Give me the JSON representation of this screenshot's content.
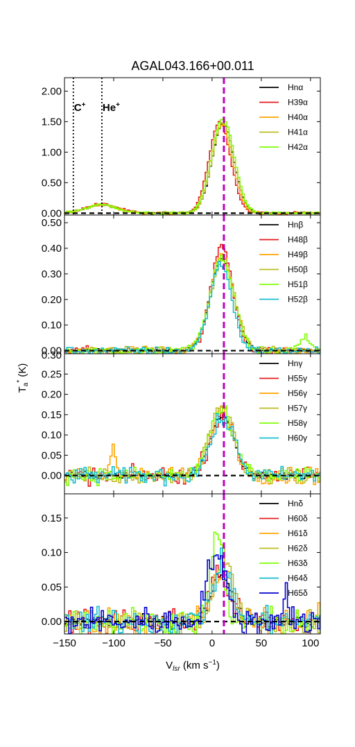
{
  "chart_data": {
    "type": "line",
    "title": "AGAL043.166+00.011",
    "xlabel": "V_lsr (km s^-1)",
    "ylabel": "T_a^* (K)",
    "xlim": [
      -150,
      110
    ],
    "x_ticks": [
      -150,
      -100,
      -50,
      0,
      50,
      100
    ],
    "x_tick_labels": [
      "−150",
      "−100",
      "−50",
      "0",
      "50",
      "100"
    ],
    "reference_lines": {
      "dashed_vertical_v": 12,
      "dashed_vertical_color": "#c000c0",
      "dotted_vertical_v": [
        -141,
        -112
      ],
      "annotations": [
        {
          "v": -141,
          "label": "C",
          "sup": "+"
        },
        {
          "v": -112,
          "label": "He",
          "sup": "+"
        }
      ]
    },
    "panels": [
      {
        "name": "alpha",
        "ylim": [
          -0.03,
          2.22
        ],
        "y_ticks": [
          0,
          0.5,
          1.0,
          1.5,
          2.0
        ],
        "y_tick_labels": [
          "0.00",
          "0.50",
          "1.00",
          "1.50",
          "2.00"
        ],
        "legend_position": "top-right",
        "series": [
          {
            "name": "Hnα",
            "color": "#000000",
            "peak_v": 11,
            "peak": 1.47,
            "sigma": 11,
            "noise": 0.012,
            "extra": [
              {
                "v": -112,
                "a": 0.14,
                "s": 16
              }
            ]
          },
          {
            "name": "H39α",
            "color": "#e41a1c",
            "peak_v": 8,
            "peak": 1.5,
            "sigma": 11,
            "noise": 0.02,
            "extra": [
              {
                "v": -112,
                "a": 0.15,
                "s": 16
              }
            ]
          },
          {
            "name": "H40α",
            "color": "#ffa500",
            "peak_v": 10,
            "peak": 1.45,
            "sigma": 11,
            "noise": 0.02,
            "extra": [
              {
                "v": -112,
                "a": 0.14,
                "s": 16
              }
            ]
          },
          {
            "name": "H41α",
            "color": "#bcbd22",
            "peak_v": 11,
            "peak": 1.48,
            "sigma": 11,
            "noise": 0.02,
            "extra": [
              {
                "v": -112,
                "a": 0.13,
                "s": 16
              }
            ]
          },
          {
            "name": "H42α",
            "color": "#7fff00",
            "peak_v": 11,
            "peak": 1.55,
            "sigma": 11.5,
            "noise": 0.02,
            "extra": [
              {
                "v": -112,
                "a": 0.14,
                "s": 16
              }
            ]
          }
        ]
      },
      {
        "name": "beta",
        "ylim": [
          -0.012,
          0.53
        ],
        "y_ticks": [
          0,
          0.1,
          0.2,
          0.3,
          0.4,
          0.5
        ],
        "y_tick_labels": [
          "0.00",
          "0.10",
          "0.20",
          "0.30",
          "0.40",
          "0.50"
        ],
        "legend_position": "top-right",
        "series": [
          {
            "name": "Hnβ",
            "color": "#000000",
            "peak_v": 10,
            "peak": 0.36,
            "sigma": 12,
            "noise": 0.006,
            "extra": []
          },
          {
            "name": "H48β",
            "color": "#e41a1c",
            "peak_v": 10,
            "peak": 0.41,
            "sigma": 11,
            "noise": 0.015,
            "extra": []
          },
          {
            "name": "H49β",
            "color": "#ffa500",
            "peak_v": 10,
            "peak": 0.37,
            "sigma": 12,
            "noise": 0.015,
            "extra": []
          },
          {
            "name": "H50β",
            "color": "#bcbd22",
            "peak_v": 11,
            "peak": 0.36,
            "sigma": 12,
            "noise": 0.015,
            "extra": []
          },
          {
            "name": "H51β",
            "color": "#7fff00",
            "peak_v": 10,
            "peak": 0.36,
            "sigma": 12,
            "noise": 0.018,
            "extra": [
              {
                "v": 95,
                "a": 0.05,
                "s": 6
              }
            ]
          },
          {
            "name": "H52β",
            "color": "#17becf",
            "peak_v": 9,
            "peak": 0.34,
            "sigma": 11,
            "noise": 0.015,
            "extra": []
          }
        ]
      },
      {
        "name": "gamma",
        "ylim": [
          -0.045,
          0.3
        ],
        "y_ticks": [
          0,
          0.05,
          0.1,
          0.15,
          0.2,
          0.25
        ],
        "y_tick_labels": [
          "0.00",
          "0.05",
          "0.10",
          "0.15",
          "0.20",
          "0.25"
        ],
        "top_tick_label": "0.30",
        "legend_position": "top-right",
        "series": [
          {
            "name": "Hnγ",
            "color": "#000000",
            "peak_v": 10,
            "peak": 0.15,
            "sigma": 12,
            "noise": 0.008,
            "extra": []
          },
          {
            "name": "H55γ",
            "color": "#e41a1c",
            "peak_v": 10,
            "peak": 0.15,
            "sigma": 12,
            "noise": 0.02,
            "extra": []
          },
          {
            "name": "H56γ",
            "color": "#ffa500",
            "peak_v": 10,
            "peak": 0.16,
            "sigma": 12,
            "noise": 0.02,
            "extra": [
              {
                "v": -100,
                "a": 0.08,
                "s": 3
              }
            ]
          },
          {
            "name": "H57γ",
            "color": "#bcbd22",
            "peak_v": 10,
            "peak": 0.17,
            "sigma": 12,
            "noise": 0.02,
            "extra": []
          },
          {
            "name": "H58γ",
            "color": "#7fff00",
            "peak_v": 9,
            "peak": 0.16,
            "sigma": 12,
            "noise": 0.02,
            "extra": []
          },
          {
            "name": "H60γ",
            "color": "#17becf",
            "peak_v": 11,
            "peak": 0.14,
            "sigma": 12,
            "noise": 0.02,
            "extra": []
          }
        ]
      },
      {
        "name": "delta",
        "ylim": [
          -0.018,
          0.185
        ],
        "y_ticks": [
          0,
          0.05,
          0.1,
          0.15
        ],
        "y_tick_labels": [
          "0.00",
          "0.05",
          "0.10",
          "0.15"
        ],
        "legend_position": "top-right",
        "series": [
          {
            "name": "Hnδ",
            "color": "#000000",
            "peak_v": 10,
            "peak": 0.07,
            "sigma": 10,
            "noise": 0.008,
            "extra": []
          },
          {
            "name": "H60δ",
            "color": "#e41a1c",
            "peak_v": 8,
            "peak": 0.07,
            "sigma": 10,
            "noise": 0.02,
            "extra": []
          },
          {
            "name": "H61δ",
            "color": "#ffa500",
            "peak_v": 10,
            "peak": 0.07,
            "sigma": 10,
            "noise": 0.02,
            "extra": []
          },
          {
            "name": "H62δ",
            "color": "#bcbd22",
            "peak_v": 12,
            "peak": 0.09,
            "sigma": 9,
            "noise": 0.02,
            "extra": []
          },
          {
            "name": "H63δ",
            "color": "#7fff00",
            "peak_v": 5,
            "peak": 0.13,
            "sigma": 6,
            "noise": 0.02,
            "extra": []
          },
          {
            "name": "H64δ",
            "color": "#17becf",
            "peak_v": 10,
            "peak": 0.08,
            "sigma": 10,
            "noise": 0.02,
            "extra": []
          },
          {
            "name": "H65δ",
            "color": "#0000cd",
            "peak_v": 4,
            "peak": 0.1,
            "sigma": 9,
            "noise": 0.02,
            "extra": [
              {
                "v": 75,
                "a": 0.05,
                "s": 3
              }
            ]
          }
        ]
      }
    ]
  }
}
